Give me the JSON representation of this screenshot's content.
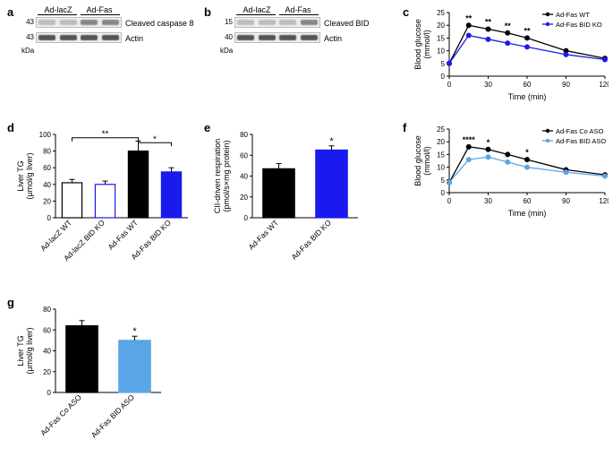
{
  "panels": {
    "a": {
      "label": "a",
      "header": [
        "Ad-lacZ",
        "Ad-Fas"
      ],
      "mw": [
        "43",
        "43"
      ],
      "rowLabels": [
        "Cleaved caspase 8",
        "Actin"
      ],
      "kda": "kDa"
    },
    "b": {
      "label": "b",
      "header": [
        "Ad-lacZ",
        "Ad-Fas"
      ],
      "mw": [
        "15",
        "40"
      ],
      "rowLabels": [
        "Cleaved BID",
        "Actin"
      ],
      "kda": "kDa"
    },
    "c": {
      "label": "c",
      "ylabel": "Blood glucose\n(mmol/l)",
      "xlabel": "Time (min)",
      "ylim": [
        0,
        25
      ],
      "ytick_step": 5,
      "xlim": [
        0,
        120
      ],
      "xticks": [
        0,
        30,
        60,
        90,
        120
      ],
      "legend": [
        "Ad-Fas WT",
        "Ad-Fas BID KO"
      ],
      "colors": [
        "#000000",
        "#1a1aee"
      ],
      "series": [
        {
          "x": [
            0,
            15,
            30,
            45,
            60,
            90,
            120
          ],
          "y": [
            5,
            20,
            18.5,
            17,
            15,
            10,
            7
          ]
        },
        {
          "x": [
            0,
            15,
            30,
            45,
            60,
            90,
            120
          ],
          "y": [
            5,
            16,
            14.5,
            13,
            11.5,
            8.5,
            6.5
          ]
        }
      ],
      "error": [
        [
          0.5,
          1.0,
          1.0,
          1.0,
          1.0,
          0.8,
          0.5
        ],
        [
          0.5,
          0.8,
          0.8,
          0.8,
          0.8,
          0.6,
          0.5
        ]
      ],
      "sig": [
        {
          "x": 15,
          "t": "**"
        },
        {
          "x": 30,
          "t": "**"
        },
        {
          "x": 45,
          "t": "**"
        },
        {
          "x": 60,
          "t": "**"
        }
      ]
    },
    "d": {
      "label": "d",
      "ylabel": "Liver TG\n(μmol/g liver)",
      "ylim": [
        0,
        100
      ],
      "ytick_step": 20,
      "cats": [
        "Ad-lacZ WT",
        "Ad-lacZ BID KO",
        "Ad-Fas WT",
        "Ad-Fas BID KO"
      ],
      "values": [
        42,
        40,
        80,
        55
      ],
      "errors": [
        4,
        4,
        12,
        5
      ],
      "fills": [
        "#ffffff",
        "#ffffff",
        "#000000",
        "#1a1aee"
      ],
      "strokes": [
        "#000000",
        "#1a1aee",
        "#000000",
        "#1a1aee"
      ],
      "sig": [
        {
          "from": 0,
          "to": 2,
          "label": "**",
          "h": 96
        },
        {
          "from": 2,
          "to": 3,
          "label": "*",
          "h": 90
        }
      ]
    },
    "e": {
      "label": "e",
      "ylabel": "CII-driven respiration\n(pmol/s×mg protein)",
      "ylim": [
        0,
        80
      ],
      "ytick_step": 20,
      "cats": [
        "Ad-Fas WT",
        "Ad-Fas BID KO"
      ],
      "values": [
        47,
        65
      ],
      "errors": [
        5,
        4
      ],
      "fills": [
        "#000000",
        "#1a1aee"
      ],
      "strokes": [
        "#000000",
        "#1a1aee"
      ],
      "sig_simple": [
        {
          "idx": 1,
          "label": "*"
        }
      ]
    },
    "f": {
      "label": "f",
      "ylabel": "Blood glucose\n(mmol/l)",
      "xlabel": "Time (min)",
      "ylim": [
        0,
        25
      ],
      "ytick_step": 5,
      "xlim": [
        0,
        120
      ],
      "xticks": [
        0,
        30,
        60,
        90,
        120
      ],
      "legend": [
        "Ad-Fas Co ASO",
        "Ad-Fas BID ASO"
      ],
      "colors": [
        "#000000",
        "#5aa5e6"
      ],
      "series": [
        {
          "x": [
            0,
            15,
            30,
            45,
            60,
            90,
            120
          ],
          "y": [
            4,
            18,
            17,
            15,
            13,
            9,
            7
          ]
        },
        {
          "x": [
            0,
            15,
            30,
            45,
            60,
            90,
            120
          ],
          "y": [
            4,
            13,
            14,
            12,
            10,
            8,
            6.5
          ]
        }
      ],
      "error": [
        [
          0.4,
          1.0,
          1.0,
          1.0,
          1.0,
          0.7,
          0.5
        ],
        [
          0.4,
          0.8,
          0.8,
          0.8,
          0.8,
          0.6,
          0.5
        ]
      ],
      "sig": [
        {
          "x": 15,
          "t": "****"
        },
        {
          "x": 30,
          "t": "*"
        },
        {
          "x": 60,
          "t": "*"
        }
      ]
    },
    "g": {
      "label": "g",
      "ylabel": "Liver TG\n(μmol/g liver)",
      "ylim": [
        0,
        80
      ],
      "ytick_step": 20,
      "cats": [
        "Ad-Fas Co ASO",
        "Ad-Fas BID ASO"
      ],
      "values": [
        64,
        50
      ],
      "errors": [
        5,
        4
      ],
      "fills": [
        "#000000",
        "#5aa5e6"
      ],
      "strokes": [
        "#000000",
        "#5aa5e6"
      ],
      "sig_simple": [
        {
          "idx": 1,
          "label": "*"
        }
      ]
    }
  }
}
